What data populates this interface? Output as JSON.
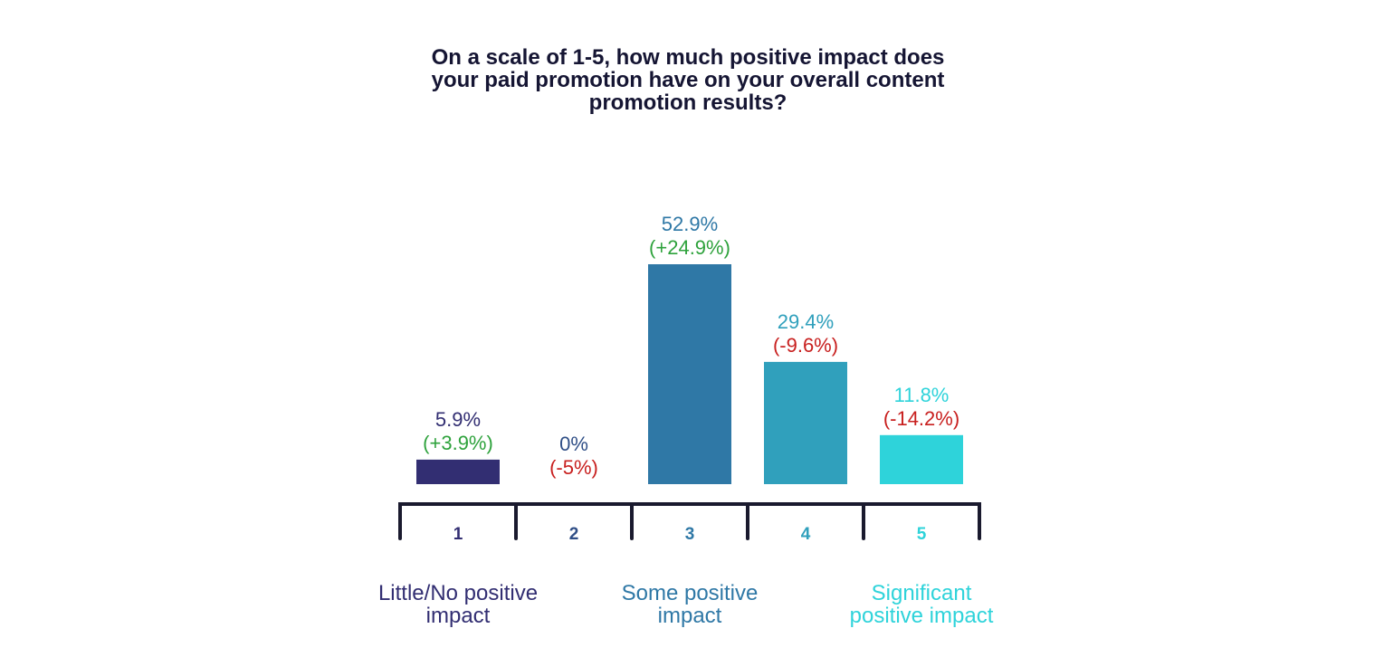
{
  "chart_data": {
    "type": "bar",
    "title_lines": [
      "On a scale of 1-5, how much positive impact does",
      "your paid promotion have on your overall content",
      "promotion results?"
    ],
    "categories": [
      "1",
      "2",
      "3",
      "4",
      "5"
    ],
    "values": [
      5.9,
      0,
      52.9,
      29.4,
      11.8
    ],
    "value_labels": [
      "5.9%",
      "0%",
      "52.9%",
      "29.4%",
      "11.8%"
    ],
    "changes": [
      3.9,
      -5,
      24.9,
      -9.6,
      -14.2
    ],
    "change_labels": [
      "(+3.9%)",
      "(-5%)",
      "(+24.9%)",
      "(-9.6%)",
      "(-14.2%)"
    ],
    "colors": [
      "#322e72",
      "#2f4e86",
      "#2f78a6",
      "#30a0bc",
      "#2ed3da"
    ],
    "change_colors": {
      "positive": "#2ea23c",
      "negative": "#c8201f"
    },
    "axis_color": "#1a1a2e",
    "scale_labels": [
      {
        "lines": [
          "Little/No positive",
          "impact"
        ],
        "category": "1",
        "color": "#322e72"
      },
      {
        "lines": [
          "Some positive",
          "impact"
        ],
        "category": "3",
        "color": "#2f78a6"
      },
      {
        "lines": [
          "Significant",
          "positive impact"
        ],
        "category": "5",
        "color": "#2ed3da"
      }
    ],
    "ylim": [
      0,
      52.9
    ],
    "grid": false,
    "legend": "none"
  }
}
